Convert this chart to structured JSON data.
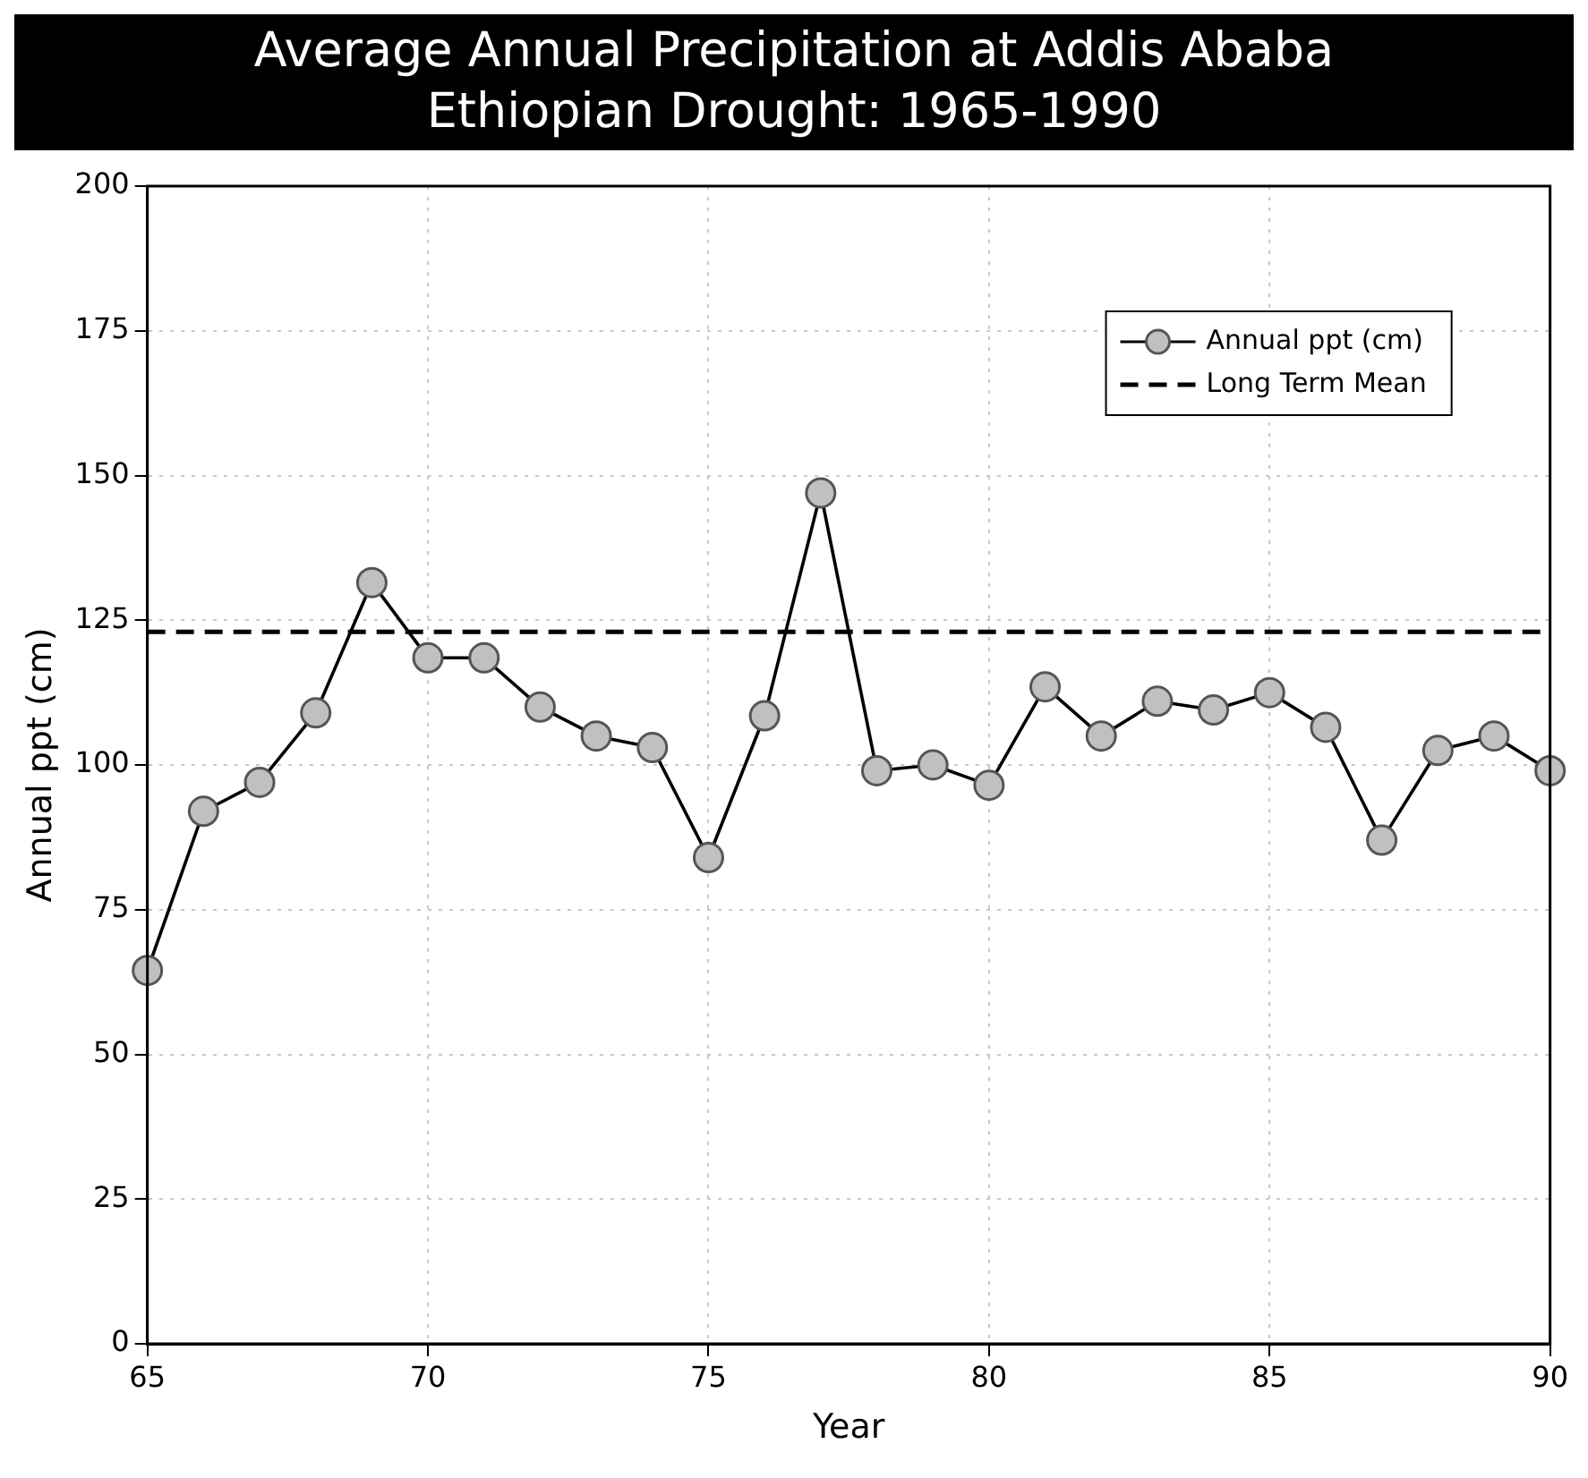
{
  "chart_data": {
    "type": "line",
    "title": "Average Annual Precipitation at Addis Ababa",
    "subtitle": "Ethiopian Drought: 1965-1990",
    "xlabel": "Year",
    "ylabel": "Annual ppt (cm)",
    "x": [
      65,
      66,
      67,
      68,
      69,
      70,
      71,
      72,
      73,
      74,
      75,
      76,
      77,
      78,
      79,
      80,
      81,
      82,
      83,
      84,
      85,
      86,
      87,
      88,
      89,
      90
    ],
    "series": [
      {
        "name": "Annual ppt (cm)",
        "color": "#000000",
        "values": [
          64.5,
          92,
          97,
          109,
          131.5,
          118.5,
          118.5,
          110,
          105,
          103,
          84,
          108.5,
          147,
          99,
          100,
          96.5,
          113.5,
          105,
          111,
          109.5,
          112.5,
          106.5,
          87,
          102.5,
          105,
          99
        ]
      }
    ],
    "ref_lines": [
      {
        "axis": "y",
        "value": 123,
        "label": "Long Term Mean",
        "color": "#000000",
        "line_style": "dashed"
      }
    ],
    "xlim": [
      65,
      90
    ],
    "xticks": [
      65,
      70,
      75,
      80,
      85,
      90
    ],
    "ylim": [
      0,
      200
    ],
    "yticks": [
      0,
      25,
      50,
      75,
      100,
      125,
      150,
      175,
      200
    ],
    "grid": true,
    "legend": "top right",
    "marker": "circle",
    "line_style": "solid"
  }
}
